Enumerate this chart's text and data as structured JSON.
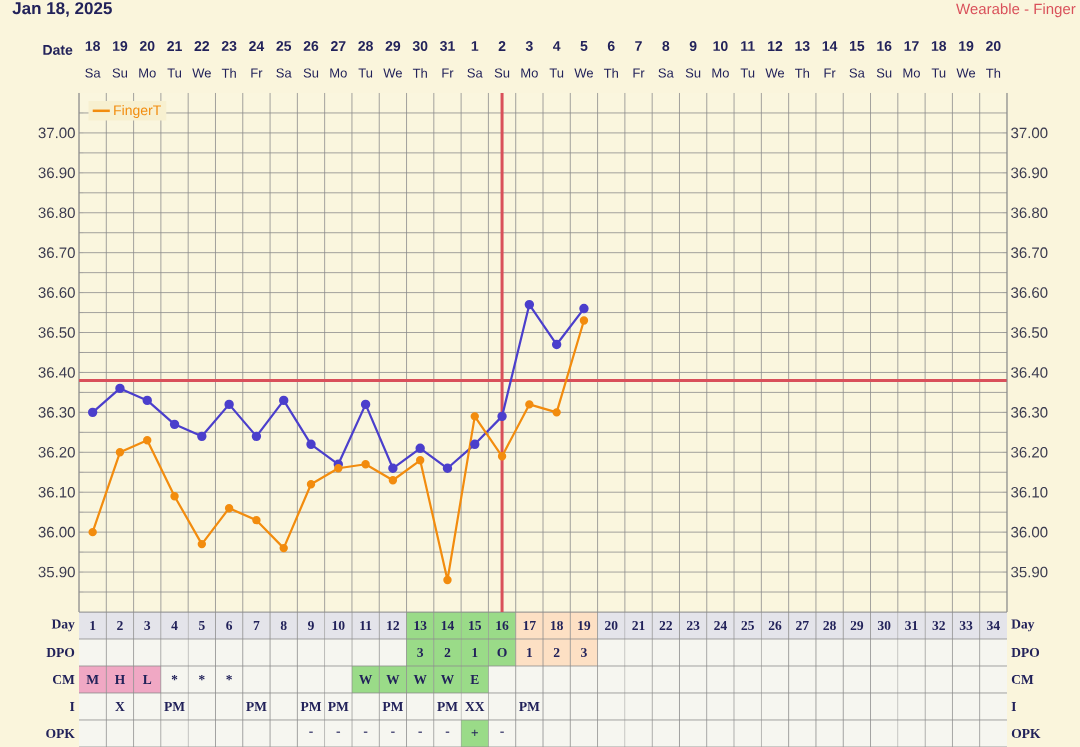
{
  "chart_data": {
    "type": "line",
    "title": "Jan 18, 2025",
    "subtitle": "Wearable - Finger",
    "categories": [
      "1",
      "2",
      "3",
      "4",
      "5",
      "6",
      "7",
      "8",
      "9",
      "10",
      "11",
      "12",
      "13",
      "14",
      "15",
      "16",
      "17",
      "18",
      "19",
      "20",
      "21",
      "22",
      "23",
      "24",
      "25",
      "26",
      "27",
      "28",
      "29",
      "30",
      "31",
      "32",
      "33",
      "34"
    ],
    "series": [
      {
        "color": "#4b3fcc",
        "values": [
          36.3,
          36.36,
          36.33,
          36.27,
          36.24,
          36.32,
          36.24,
          36.33,
          36.22,
          36.17,
          36.32,
          36.16,
          36.21,
          36.16,
          36.22,
          36.29,
          36.57,
          36.47,
          36.56,
          null,
          null,
          null,
          null,
          null,
          null,
          null,
          null,
          null,
          null,
          null,
          null,
          null,
          null,
          null
        ]
      },
      {
        "name": "FingerT",
        "color": "#f28c0e",
        "values": [
          36.0,
          36.2,
          36.23,
          36.09,
          35.97,
          36.06,
          36.03,
          35.96,
          36.12,
          36.16,
          36.17,
          36.13,
          36.18,
          35.88,
          36.29,
          36.19,
          36.32,
          36.3,
          36.53,
          null,
          null,
          null,
          null,
          null,
          null,
          null,
          null,
          null,
          null,
          null,
          null,
          null,
          null,
          null
        ]
      }
    ],
    "ylim": [
      35.8,
      37.1
    ],
    "yticks": [
      {
        "value": 35.85,
        "label": null
      },
      {
        "value": 35.9,
        "label": "35.90"
      },
      {
        "value": 35.95,
        "label": null
      },
      {
        "value": 36.0,
        "label": "36.00"
      },
      {
        "value": 36.05,
        "label": null
      },
      {
        "value": 36.1,
        "label": "36.10"
      },
      {
        "value": 36.15,
        "label": null
      },
      {
        "value": 36.2,
        "label": "36.20"
      },
      {
        "value": 36.25,
        "label": null
      },
      {
        "value": 36.3,
        "label": "36.30"
      },
      {
        "value": 36.35,
        "label": null
      },
      {
        "value": 36.4,
        "label": "36.40"
      },
      {
        "value": 36.45,
        "label": null
      },
      {
        "value": 36.5,
        "label": "36.50"
      },
      {
        "value": 36.55,
        "label": null
      },
      {
        "value": 36.6,
        "label": "36.60"
      },
      {
        "value": 36.65,
        "label": null
      },
      {
        "value": 36.7,
        "label": "36.70"
      },
      {
        "value": 36.75,
        "label": null
      },
      {
        "value": 36.8,
        "label": "36.80"
      },
      {
        "value": 36.85,
        "label": null
      },
      {
        "value": 36.9,
        "label": "36.90"
      },
      {
        "value": 36.95,
        "label": null
      },
      {
        "value": 37.0,
        "label": "37.00"
      },
      {
        "value": 37.05,
        "label": null
      }
    ],
    "y2lim": [
      35.8,
      37.1
    ],
    "y2ticks": [
      {
        "value": 35.9,
        "label": "35.90"
      },
      {
        "value": 36.0,
        "label": "36.00"
      },
      {
        "value": 36.1,
        "label": "36.10"
      },
      {
        "value": 36.2,
        "label": "36.20"
      },
      {
        "value": 36.3,
        "label": "36.30"
      },
      {
        "value": 36.4,
        "label": "36.40"
      },
      {
        "value": 36.5,
        "label": "36.50"
      },
      {
        "value": 36.6,
        "label": "36.60"
      },
      {
        "value": 36.7,
        "label": "36.70"
      },
      {
        "value": 36.8,
        "label": "36.80"
      },
      {
        "value": 36.9,
        "label": "36.90"
      },
      {
        "value": 37.0,
        "label": "37.00"
      }
    ],
    "ref_lines": [
      {
        "axis": "y",
        "value": 36.38,
        "color": "#d9505a"
      },
      {
        "axis": "x",
        "value": "16",
        "color": "#d9505a"
      }
    ],
    "grid": true,
    "legend": "top left",
    "marker": "circle",
    "line_style": "solid",
    "annotations": [
      "Date",
      "18",
      "19",
      "20",
      "21",
      "22",
      "23",
      "24",
      "25",
      "26",
      "27",
      "28",
      "29",
      "30",
      "31",
      "1",
      "2",
      "3",
      "4",
      "5",
      "6",
      "7",
      "8",
      "9",
      "10",
      "11",
      "12",
      "13",
      "14",
      "15",
      "16",
      "17",
      "18",
      "19",
      "20",
      "Sa",
      "Su",
      "Mo",
      "Tu",
      "We",
      "Th",
      "Fr",
      "Sa",
      "Su",
      "Mo",
      "Tu",
      "We",
      "Th",
      "Fr",
      "Sa",
      "Su",
      "Mo",
      "Tu",
      "We",
      "Th",
      "Fr",
      "Sa",
      "Su",
      "Mo",
      "Tu",
      "We",
      "Th",
      "Fr",
      "Sa",
      "Su",
      "Mo",
      "Tu",
      "We",
      "Th",
      "Day",
      "DPO",
      "CM",
      "I",
      "OPK",
      "Day",
      "DPO",
      "CM",
      "I",
      "OPK",
      "3",
      "2",
      "1",
      "O",
      "1",
      "2",
      "3",
      "M",
      "H",
      "L",
      "*",
      "*",
      "*",
      "W",
      "W",
      "W",
      "W",
      "E",
      "X",
      "PM",
      "PM",
      "PM",
      "PM",
      "PM",
      "PM",
      "XX",
      "PM",
      "-",
      "-",
      "-",
      "-",
      "-",
      "-",
      "+",
      "-"
    ]
  }
}
